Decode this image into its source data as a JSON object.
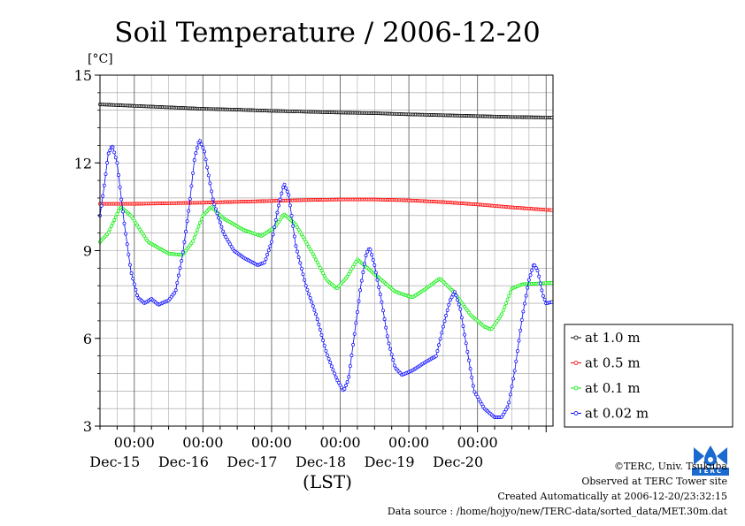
{
  "chart_data": {
    "type": "line",
    "title": "Soil Temperature / 2006-12-20",
    "ylabel": "[°C]",
    "xlabel": "(LST)",
    "ylim": [
      3,
      15
    ],
    "yticks": [
      3,
      6,
      9,
      12,
      15
    ],
    "xlim": [
      0,
      6.6
    ],
    "x_unit": "days from 2006-12-14 12:00 LST",
    "xticks": [
      {
        "x": 0.5,
        "time": "00:00",
        "date": "Dec-15"
      },
      {
        "x": 1.5,
        "time": "00:00",
        "date": "Dec-16"
      },
      {
        "x": 2.5,
        "time": "00:00",
        "date": "Dec-17"
      },
      {
        "x": 3.5,
        "time": "00:00",
        "date": "Dec-18"
      },
      {
        "x": 4.5,
        "time": "00:00",
        "date": "Dec-19"
      },
      {
        "x": 5.5,
        "time": "00:00",
        "date": "Dec-20"
      }
    ],
    "grid": true,
    "legend_position": "right",
    "series": [
      {
        "name": "at 1.0 m",
        "color": "#000000",
        "points": [
          [
            0,
            14.0
          ],
          [
            0.5,
            13.95
          ],
          [
            1,
            13.9
          ],
          [
            1.5,
            13.85
          ],
          [
            2,
            13.82
          ],
          [
            2.5,
            13.78
          ],
          [
            3,
            13.75
          ],
          [
            3.5,
            13.72
          ],
          [
            4,
            13.7
          ],
          [
            4.5,
            13.66
          ],
          [
            5,
            13.63
          ],
          [
            5.5,
            13.6
          ],
          [
            6,
            13.57
          ],
          [
            6.6,
            13.55
          ]
        ]
      },
      {
        "name": "at 0.5 m",
        "color": "#ff0000",
        "points": [
          [
            0,
            10.6
          ],
          [
            0.5,
            10.6
          ],
          [
            1,
            10.62
          ],
          [
            1.5,
            10.64
          ],
          [
            2,
            10.67
          ],
          [
            2.5,
            10.7
          ],
          [
            3,
            10.73
          ],
          [
            3.5,
            10.75
          ],
          [
            4,
            10.75
          ],
          [
            4.5,
            10.72
          ],
          [
            5,
            10.66
          ],
          [
            5.5,
            10.58
          ],
          [
            6,
            10.48
          ],
          [
            6.6,
            10.38
          ]
        ]
      },
      {
        "name": "at 0.1 m",
        "color": "#00ee00",
        "points": [
          [
            0,
            9.3
          ],
          [
            0.12,
            9.6
          ],
          [
            0.3,
            10.5
          ],
          [
            0.45,
            10.2
          ],
          [
            0.7,
            9.3
          ],
          [
            1,
            8.9
          ],
          [
            1.2,
            8.85
          ],
          [
            1.35,
            9.3
          ],
          [
            1.5,
            10.2
          ],
          [
            1.62,
            10.5
          ],
          [
            1.8,
            10.1
          ],
          [
            2.1,
            9.7
          ],
          [
            2.35,
            9.5
          ],
          [
            2.55,
            9.8
          ],
          [
            2.68,
            10.25
          ],
          [
            2.85,
            9.9
          ],
          [
            3.1,
            8.9
          ],
          [
            3.3,
            8.0
          ],
          [
            3.45,
            7.7
          ],
          [
            3.6,
            8.1
          ],
          [
            3.75,
            8.7
          ],
          [
            4.0,
            8.2
          ],
          [
            4.3,
            7.6
          ],
          [
            4.55,
            7.4
          ],
          [
            4.75,
            7.7
          ],
          [
            4.95,
            8.05
          ],
          [
            5.15,
            7.6
          ],
          [
            5.4,
            6.8
          ],
          [
            5.6,
            6.4
          ],
          [
            5.7,
            6.3
          ],
          [
            5.85,
            6.8
          ],
          [
            6.0,
            7.7
          ],
          [
            6.15,
            7.85
          ],
          [
            6.6,
            7.9
          ]
        ]
      },
      {
        "name": "at 0.02 m",
        "color": "#0000ff",
        "points": [
          [
            0,
            10.2
          ],
          [
            0.05,
            11.0
          ],
          [
            0.12,
            12.3
          ],
          [
            0.18,
            12.6
          ],
          [
            0.25,
            12.0
          ],
          [
            0.35,
            10.0
          ],
          [
            0.45,
            8.3
          ],
          [
            0.55,
            7.4
          ],
          [
            0.65,
            7.2
          ],
          [
            0.75,
            7.35
          ],
          [
            0.85,
            7.15
          ],
          [
            1.0,
            7.3
          ],
          [
            1.1,
            7.6
          ],
          [
            1.2,
            8.8
          ],
          [
            1.3,
            10.5
          ],
          [
            1.38,
            12.2
          ],
          [
            1.45,
            12.8
          ],
          [
            1.52,
            12.4
          ],
          [
            1.65,
            10.7
          ],
          [
            1.8,
            9.6
          ],
          [
            1.95,
            9.0
          ],
          [
            2.1,
            8.75
          ],
          [
            2.3,
            8.5
          ],
          [
            2.4,
            8.6
          ],
          [
            2.5,
            9.3
          ],
          [
            2.6,
            10.5
          ],
          [
            2.68,
            11.3
          ],
          [
            2.75,
            10.9
          ],
          [
            2.85,
            9.2
          ],
          [
            3.0,
            7.8
          ],
          [
            3.15,
            6.8
          ],
          [
            3.3,
            5.5
          ],
          [
            3.45,
            4.6
          ],
          [
            3.55,
            4.2
          ],
          [
            3.62,
            4.6
          ],
          [
            3.7,
            6.0
          ],
          [
            3.8,
            7.8
          ],
          [
            3.88,
            8.9
          ],
          [
            3.93,
            9.1
          ],
          [
            4.0,
            8.5
          ],
          [
            4.1,
            7.3
          ],
          [
            4.2,
            5.9
          ],
          [
            4.3,
            5.0
          ],
          [
            4.4,
            4.75
          ],
          [
            4.55,
            4.9
          ],
          [
            4.75,
            5.2
          ],
          [
            4.9,
            5.4
          ],
          [
            5.0,
            6.4
          ],
          [
            5.1,
            7.3
          ],
          [
            5.17,
            7.6
          ],
          [
            5.25,
            7.0
          ],
          [
            5.35,
            5.6
          ],
          [
            5.45,
            4.2
          ],
          [
            5.6,
            3.6
          ],
          [
            5.75,
            3.3
          ],
          [
            5.85,
            3.3
          ],
          [
            5.95,
            3.7
          ],
          [
            6.05,
            5.0
          ],
          [
            6.15,
            6.7
          ],
          [
            6.25,
            8.0
          ],
          [
            6.32,
            8.55
          ],
          [
            6.38,
            8.3
          ],
          [
            6.45,
            7.5
          ],
          [
            6.5,
            7.2
          ],
          [
            6.6,
            7.25
          ]
        ]
      }
    ]
  },
  "credits": {
    "copyright": "©TERC, Univ. Tsukuba",
    "site": "Observed at TERC Tower site",
    "created": "Created Automatically at 2006-12-20/23:32:15",
    "source": "Data source : /home/hojyo/new/TERC-data/sorted_data/MET.30m.dat"
  },
  "logo": {
    "text": "TERC"
  }
}
